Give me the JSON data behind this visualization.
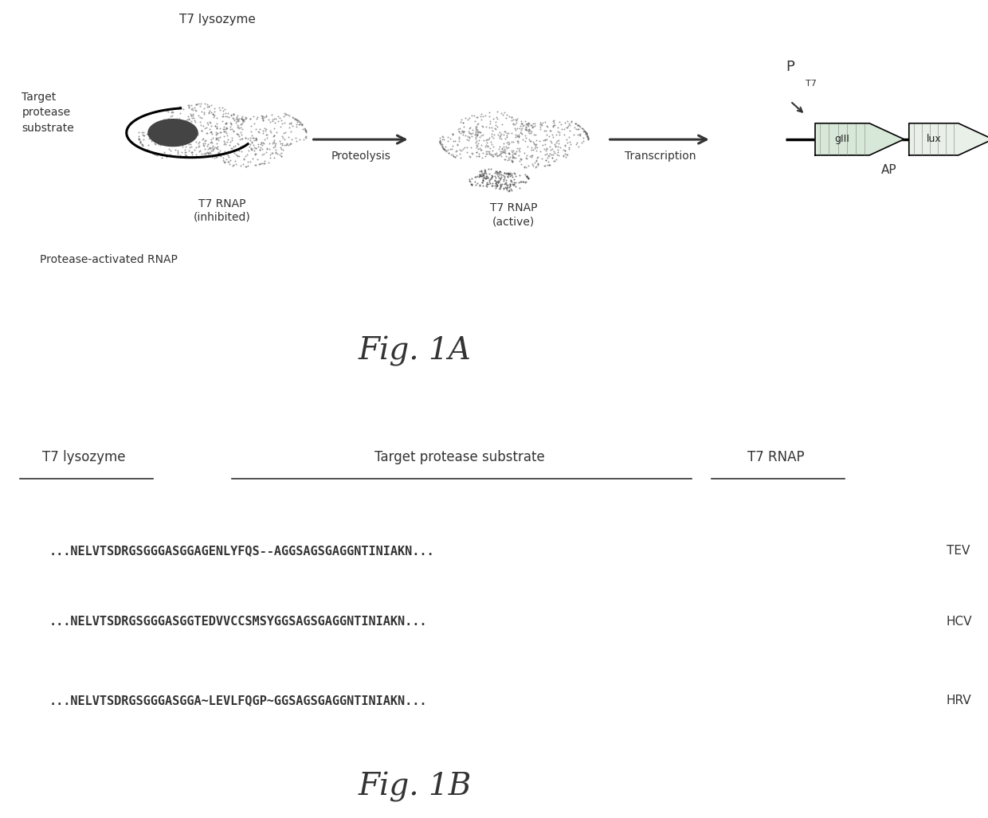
{
  "background_color": "#ffffff",
  "fig1a_title": "Fig. 1A",
  "fig1b_title": "Fig. 1B",
  "top_labels": {
    "t7_lysozyme": "T7 lysozyme",
    "target_protease_substrate": "Target protease substrate",
    "t7_rnap": "T7 RNAP"
  },
  "tev_seq_bold": "...NELVTSDRGSGGGASGGAGENLYFQS--AGGSAGSGAGGNTINIAKN...",
  "hcv_seq_bold": "...NELVTSDRGSGGGASGGTEDVVCCSMSYGGSAGSGAGGNTINIAKN...",
  "hrv_seq_bold": "...NELVTSDRGSGGGASGGA~LEVLFQGP~GGSAGSGAGGNTINIAKN...",
  "tev_label": "TEV",
  "hcv_label": "HCV",
  "hrv_label": "HRV",
  "arrow1_label": "Proteolysis",
  "arrow2_label": "Transcription",
  "label_target": "Target\nprotease\nsubstrate",
  "label_t7rnap_inhibited": "T7 RNAP\n(inhibited)",
  "label_t7rnap_active": "T7 RNAP\n(active)",
  "label_protease_activated": "Protease-activated RNAP",
  "label_ap": "AP",
  "label_pt7": "P",
  "label_t7_sub": "T7",
  "label_giii": "gIII",
  "label_lux": "lux",
  "font_color": "#222222",
  "seq_font_size": 11,
  "header_font_size": 12,
  "fig_label_font_size": 28
}
